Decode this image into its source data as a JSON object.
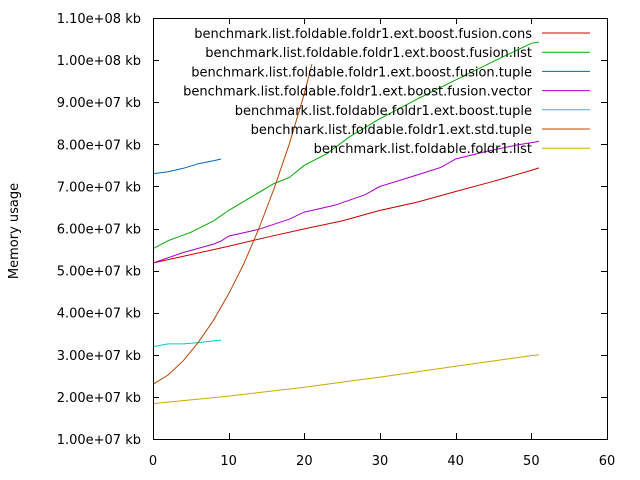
{
  "chart_data": {
    "type": "line",
    "ylabel": "Memory usage",
    "xlim": [
      0,
      60
    ],
    "ylim": [
      10000000,
      110000000
    ],
    "grid": false,
    "legend_position": "top-right",
    "x_ticks": [
      {
        "value": 0,
        "label": "0"
      },
      {
        "value": 10,
        "label": "10"
      },
      {
        "value": 20,
        "label": "20"
      },
      {
        "value": 30,
        "label": "30"
      },
      {
        "value": 40,
        "label": "40"
      },
      {
        "value": 50,
        "label": "50"
      },
      {
        "value": 60,
        "label": "60"
      }
    ],
    "y_ticks": [
      {
        "value": 10000000,
        "label": "1.00e+07 kb"
      },
      {
        "value": 20000000,
        "label": "2.00e+07 kb"
      },
      {
        "value": 30000000,
        "label": "3.00e+07 kb"
      },
      {
        "value": 40000000,
        "label": "4.00e+07 kb"
      },
      {
        "value": 50000000,
        "label": "5.00e+07 kb"
      },
      {
        "value": 60000000,
        "label": "6.00e+07 kb"
      },
      {
        "value": 70000000,
        "label": "7.00e+07 kb"
      },
      {
        "value": 80000000,
        "label": "8.00e+07 kb"
      },
      {
        "value": 90000000,
        "label": "9.00e+07 kb"
      },
      {
        "value": 100000000,
        "label": "1.00e+08 kb"
      },
      {
        "value": 110000000,
        "label": "1.10e+08 kb"
      }
    ],
    "series": [
      {
        "name": "benchmark.list.foldable.foldr1.ext.boost.fusion.cons",
        "color": "#cc0000",
        "points": [
          [
            0,
            51.8
          ],
          [
            5,
            53.8
          ],
          [
            10,
            55.8
          ],
          [
            15,
            57.9
          ],
          [
            20,
            59.9
          ],
          [
            25,
            61.8
          ],
          [
            30,
            64.3
          ],
          [
            35,
            66.3
          ],
          [
            40,
            68.8
          ],
          [
            45,
            71.2
          ],
          [
            50,
            73.8
          ],
          [
            51,
            74.4
          ]
        ]
      },
      {
        "name": "benchmark.list.foldable.foldr1.ext.boost.fusion.list",
        "color": "#00aa00",
        "points": [
          [
            0,
            55.2
          ],
          [
            2,
            57.1
          ],
          [
            5,
            59.1
          ],
          [
            8,
            61.8
          ],
          [
            10,
            64.3
          ],
          [
            13,
            67.5
          ],
          [
            16,
            70.7
          ],
          [
            18,
            72.1
          ],
          [
            20,
            75.0
          ],
          [
            23,
            77.8
          ],
          [
            26,
            81.8
          ],
          [
            30,
            86.1
          ],
          [
            35,
            90.8
          ],
          [
            40,
            95.3
          ],
          [
            45,
            99.7
          ],
          [
            50,
            104.0
          ],
          [
            51,
            104.3
          ]
        ]
      },
      {
        "name": "benchmark.list.foldable.foldr1.ext.boost.fusion.tuple",
        "color": "#0066bb",
        "points": [
          [
            0,
            73.0
          ],
          [
            2,
            73.5
          ],
          [
            4,
            74.3
          ],
          [
            6,
            75.4
          ],
          [
            8,
            76.1
          ],
          [
            9,
            76.5
          ]
        ]
      },
      {
        "name": "benchmark.list.foldable.foldr1.ext.boost.fusion.vector",
        "color": "#aa00cc",
        "points": [
          [
            0,
            51.8
          ],
          [
            4,
            54.3
          ],
          [
            8,
            56.3
          ],
          [
            9,
            57.0
          ],
          [
            10,
            58.2
          ],
          [
            14,
            59.8
          ],
          [
            18,
            62.2
          ],
          [
            20,
            63.9
          ],
          [
            24,
            65.5
          ],
          [
            28,
            68.0
          ],
          [
            30,
            70.0
          ],
          [
            34,
            72.2
          ],
          [
            38,
            74.5
          ],
          [
            40,
            76.5
          ],
          [
            44,
            78.3
          ],
          [
            48,
            79.8
          ],
          [
            51,
            80.7
          ]
        ]
      },
      {
        "name": "benchmark.list.foldable.foldr1.ext.boost.tuple",
        "color": "#00cccc",
        "points": [
          [
            0,
            31.9
          ],
          [
            2,
            32.6
          ],
          [
            4,
            32.6
          ],
          [
            6,
            32.9
          ],
          [
            8,
            33.3
          ],
          [
            9,
            33.5
          ]
        ]
      },
      {
        "name": "benchmark.list.foldable.foldr1.ext.std.tuple",
        "color": "#bb4400",
        "points": [
          [
            0,
            23.0
          ],
          [
            2,
            25.2
          ],
          [
            4,
            28.6
          ],
          [
            6,
            33.0
          ],
          [
            8,
            38.2
          ],
          [
            10,
            44.5
          ],
          [
            12,
            51.6
          ],
          [
            14,
            60.0
          ],
          [
            16,
            69.5
          ],
          [
            18,
            80.0
          ],
          [
            20,
            92.0
          ],
          [
            21,
            99.0
          ]
        ]
      },
      {
        "name": "benchmark.list.foldable.foldr1.list",
        "color": "#ccaa00",
        "points": [
          [
            0,
            18.4
          ],
          [
            10,
            20.2
          ],
          [
            20,
            22.3
          ],
          [
            30,
            24.7
          ],
          [
            40,
            27.3
          ],
          [
            50,
            29.8
          ],
          [
            51,
            30.0
          ]
        ]
      }
    ]
  }
}
